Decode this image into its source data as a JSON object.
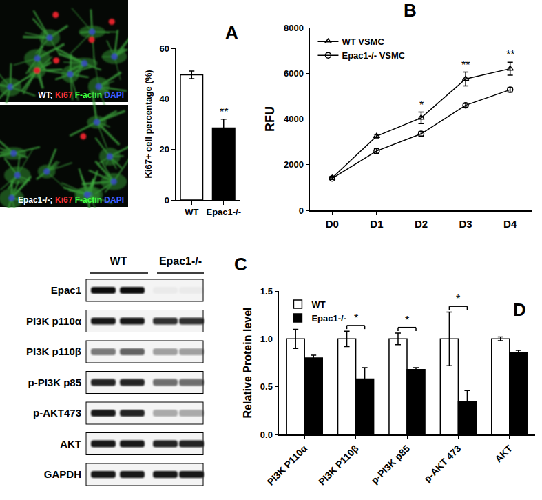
{
  "micrographs": [
    {
      "label": [
        {
          "text": "WT;",
          "color": "#ffffff"
        },
        {
          "text": "Ki67",
          "color": "#ff3030"
        },
        {
          "text": "F-actin",
          "color": "#40ff40"
        },
        {
          "text": "DAPI",
          "color": "#4060ff"
        }
      ]
    },
    {
      "label": [
        {
          "text": "Epac1-/-;",
          "color": "#ffffff"
        },
        {
          "text": "Ki67",
          "color": "#ff3030"
        },
        {
          "text": "F-actin",
          "color": "#40ff40"
        },
        {
          "text": "DAPI",
          "color": "#4060ff"
        }
      ]
    }
  ],
  "western_blot": {
    "title": "C",
    "groups": [
      "WT",
      "Epac1-/-"
    ],
    "rows": [
      {
        "label": "Epac1",
        "bands": [
          0.95,
          0.95,
          0.04,
          0.04
        ]
      },
      {
        "label": "PI3K p110α",
        "bands": [
          0.9,
          0.9,
          0.8,
          0.8
        ]
      },
      {
        "label": "PI3K p110β",
        "bands": [
          0.5,
          0.6,
          0.35,
          0.35
        ]
      },
      {
        "label": "p-PI3K p85",
        "bands": [
          0.85,
          0.85,
          0.55,
          0.55
        ]
      },
      {
        "label": "p-AKT473",
        "bands": [
          0.9,
          0.85,
          0.3,
          0.3
        ]
      },
      {
        "label": "AKT",
        "bands": [
          0.9,
          0.9,
          0.85,
          0.85
        ]
      },
      {
        "label": "GAPDH",
        "bands": [
          0.9,
          0.9,
          0.9,
          0.9
        ]
      }
    ]
  },
  "chart_data": [
    {
      "type": "bar",
      "title": "A",
      "categories": [
        "WT",
        "Epac1-/-"
      ],
      "values": [
        49.5,
        28.5
      ],
      "errors": [
        1.5,
        3.5
      ],
      "colors": [
        "#ffffff",
        "#000000"
      ],
      "ylabel": "Ki67+ cell percentage (%)",
      "ylim": [
        0,
        60
      ],
      "yticks": [
        0,
        20,
        40,
        60
      ],
      "annotations": [
        {
          "category": "Epac1-/-",
          "text": "**"
        }
      ]
    },
    {
      "type": "line",
      "title": "B",
      "categories": [
        "D0",
        "D1",
        "D2",
        "D3",
        "D4"
      ],
      "ylabel": "RFU",
      "ylim": [
        0,
        8000
      ],
      "yticks": [
        0,
        2000,
        4000,
        6000,
        8000
      ],
      "legend": "upper left",
      "series": [
        {
          "name": "WT VSMC",
          "color": "#000000",
          "marker": "triangle",
          "values": [
            1420,
            3250,
            4050,
            5750,
            6200
          ],
          "errors": [
            60,
            80,
            250,
            300,
            280
          ]
        },
        {
          "name": "Epac1-/- VSMC",
          "color": "#000000",
          "marker": "circle",
          "values": [
            1400,
            2600,
            3350,
            4600,
            5280
          ],
          "errors": [
            50,
            100,
            100,
            80,
            100
          ]
        }
      ],
      "annotations": [
        {
          "category": "D2",
          "text": "*"
        },
        {
          "category": "D3",
          "text": "**"
        },
        {
          "category": "D4",
          "text": "**"
        }
      ]
    },
    {
      "type": "bar",
      "title": "D",
      "categories": [
        "PI3K P110α",
        "PI3K P110β",
        "p-PI3K p85",
        "p-AKT 473",
        "AKT"
      ],
      "ylabel": "Relative Protein level",
      "ylim": [
        0,
        1.5
      ],
      "yticks": [
        {
          "value": 0,
          "label": "0.0"
        },
        {
          "value": 0.5,
          "label": "0.5"
        },
        {
          "value": 1,
          "label": "1.0"
        },
        {
          "value": 1.5,
          "label": "1.5"
        }
      ],
      "legend": "upper left",
      "series": [
        {
          "name": "WT",
          "color": "#ffffff",
          "values": [
            1,
            1,
            1,
            1,
            1
          ],
          "errors": [
            0.1,
            0.08,
            0.06,
            0.28,
            0.02
          ]
        },
        {
          "name": "Epac1-/-",
          "color": "#000000",
          "values": [
            0.8,
            0.58,
            0.68,
            0.34,
            0.86
          ],
          "errors": [
            0.03,
            0.12,
            0.02,
            0.12,
            0.02
          ]
        }
      ],
      "annotations": [
        {
          "category": "PI3K P110β",
          "text": "*"
        },
        {
          "category": "p-PI3K p85",
          "text": "*"
        },
        {
          "category": "p-AKT 473",
          "text": "*"
        }
      ]
    }
  ]
}
